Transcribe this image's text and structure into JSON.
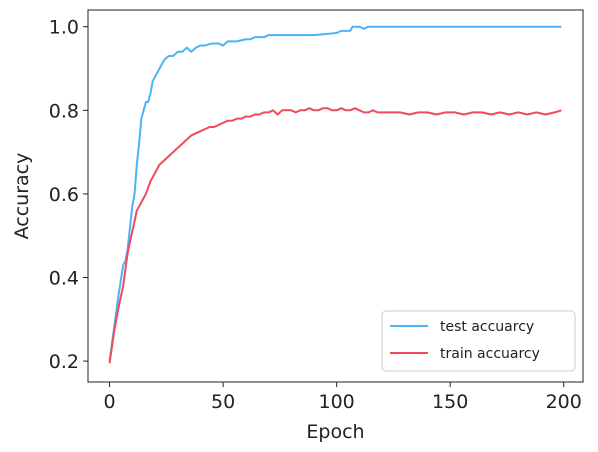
{
  "chart_data": {
    "type": "line",
    "title": "",
    "xlabel": "Epoch",
    "ylabel": "Accuracy",
    "xlim": [
      -9.5,
      208.5
    ],
    "ylim": [
      0.15,
      1.04
    ],
    "xticks": [
      0,
      50,
      100,
      150,
      200
    ],
    "yticks": [
      0.2,
      0.4,
      0.6,
      0.8,
      1.0
    ],
    "xtick_labels": [
      "0",
      "50",
      "100",
      "150",
      "200"
    ],
    "ytick_labels": [
      "0.2",
      "0.4",
      "0.6",
      "0.8",
      "1.0"
    ],
    "grid": false,
    "legend_position": "bottom-right",
    "series": [
      {
        "name": "test accuarcy",
        "color": "#4db3f5",
        "x": [
          0,
          2,
          4,
          6,
          7,
          8,
          9,
          10,
          11,
          12,
          13,
          14,
          15,
          16,
          17,
          18,
          19,
          20,
          22,
          24,
          26,
          28,
          30,
          32,
          34,
          36,
          38,
          40,
          42,
          45,
          48,
          50,
          52,
          54,
          56,
          60,
          62,
          64,
          66,
          68,
          70,
          80,
          90,
          100,
          102,
          104,
          106,
          107,
          108,
          110,
          112,
          114,
          116,
          120,
          130,
          150,
          170,
          199
        ],
        "y": [
          0.2,
          0.28,
          0.36,
          0.43,
          0.44,
          0.47,
          0.52,
          0.57,
          0.6,
          0.67,
          0.72,
          0.78,
          0.8,
          0.82,
          0.82,
          0.84,
          0.87,
          0.88,
          0.9,
          0.92,
          0.93,
          0.93,
          0.94,
          0.94,
          0.95,
          0.94,
          0.95,
          0.955,
          0.955,
          0.96,
          0.96,
          0.955,
          0.965,
          0.965,
          0.965,
          0.97,
          0.97,
          0.975,
          0.975,
          0.975,
          0.98,
          0.98,
          0.98,
          0.985,
          0.99,
          0.99,
          0.99,
          1.0,
          1.0,
          1.0,
          0.995,
          1.0,
          1.0,
          1.0,
          1.0,
          1.0,
          1.0,
          1.0
        ]
      },
      {
        "name": "train accuarcy",
        "color": "#f04a5d",
        "x": [
          0,
          2,
          4,
          6,
          8,
          10,
          12,
          14,
          16,
          18,
          20,
          22,
          24,
          26,
          28,
          30,
          32,
          34,
          36,
          38,
          40,
          42,
          44,
          46,
          48,
          50,
          52,
          54,
          56,
          58,
          60,
          62,
          64,
          66,
          68,
          70,
          72,
          74,
          76,
          78,
          80,
          82,
          84,
          86,
          88,
          90,
          92,
          94,
          96,
          98,
          100,
          102,
          104,
          106,
          108,
          110,
          112,
          114,
          116,
          118,
          120,
          124,
          128,
          132,
          136,
          140,
          144,
          148,
          152,
          156,
          160,
          164,
          168,
          172,
          176,
          180,
          184,
          188,
          192,
          196,
          199
        ],
        "y": [
          0.195,
          0.27,
          0.33,
          0.38,
          0.46,
          0.51,
          0.56,
          0.58,
          0.6,
          0.63,
          0.65,
          0.67,
          0.68,
          0.69,
          0.7,
          0.71,
          0.72,
          0.73,
          0.74,
          0.745,
          0.75,
          0.755,
          0.76,
          0.76,
          0.765,
          0.77,
          0.775,
          0.775,
          0.78,
          0.78,
          0.785,
          0.785,
          0.79,
          0.79,
          0.795,
          0.795,
          0.8,
          0.79,
          0.8,
          0.8,
          0.8,
          0.795,
          0.8,
          0.8,
          0.805,
          0.8,
          0.8,
          0.805,
          0.805,
          0.8,
          0.8,
          0.805,
          0.8,
          0.8,
          0.805,
          0.8,
          0.795,
          0.795,
          0.8,
          0.795,
          0.795,
          0.795,
          0.795,
          0.79,
          0.795,
          0.795,
          0.79,
          0.795,
          0.795,
          0.79,
          0.795,
          0.795,
          0.79,
          0.795,
          0.79,
          0.795,
          0.79,
          0.795,
          0.79,
          0.795,
          0.8
        ]
      }
    ]
  }
}
